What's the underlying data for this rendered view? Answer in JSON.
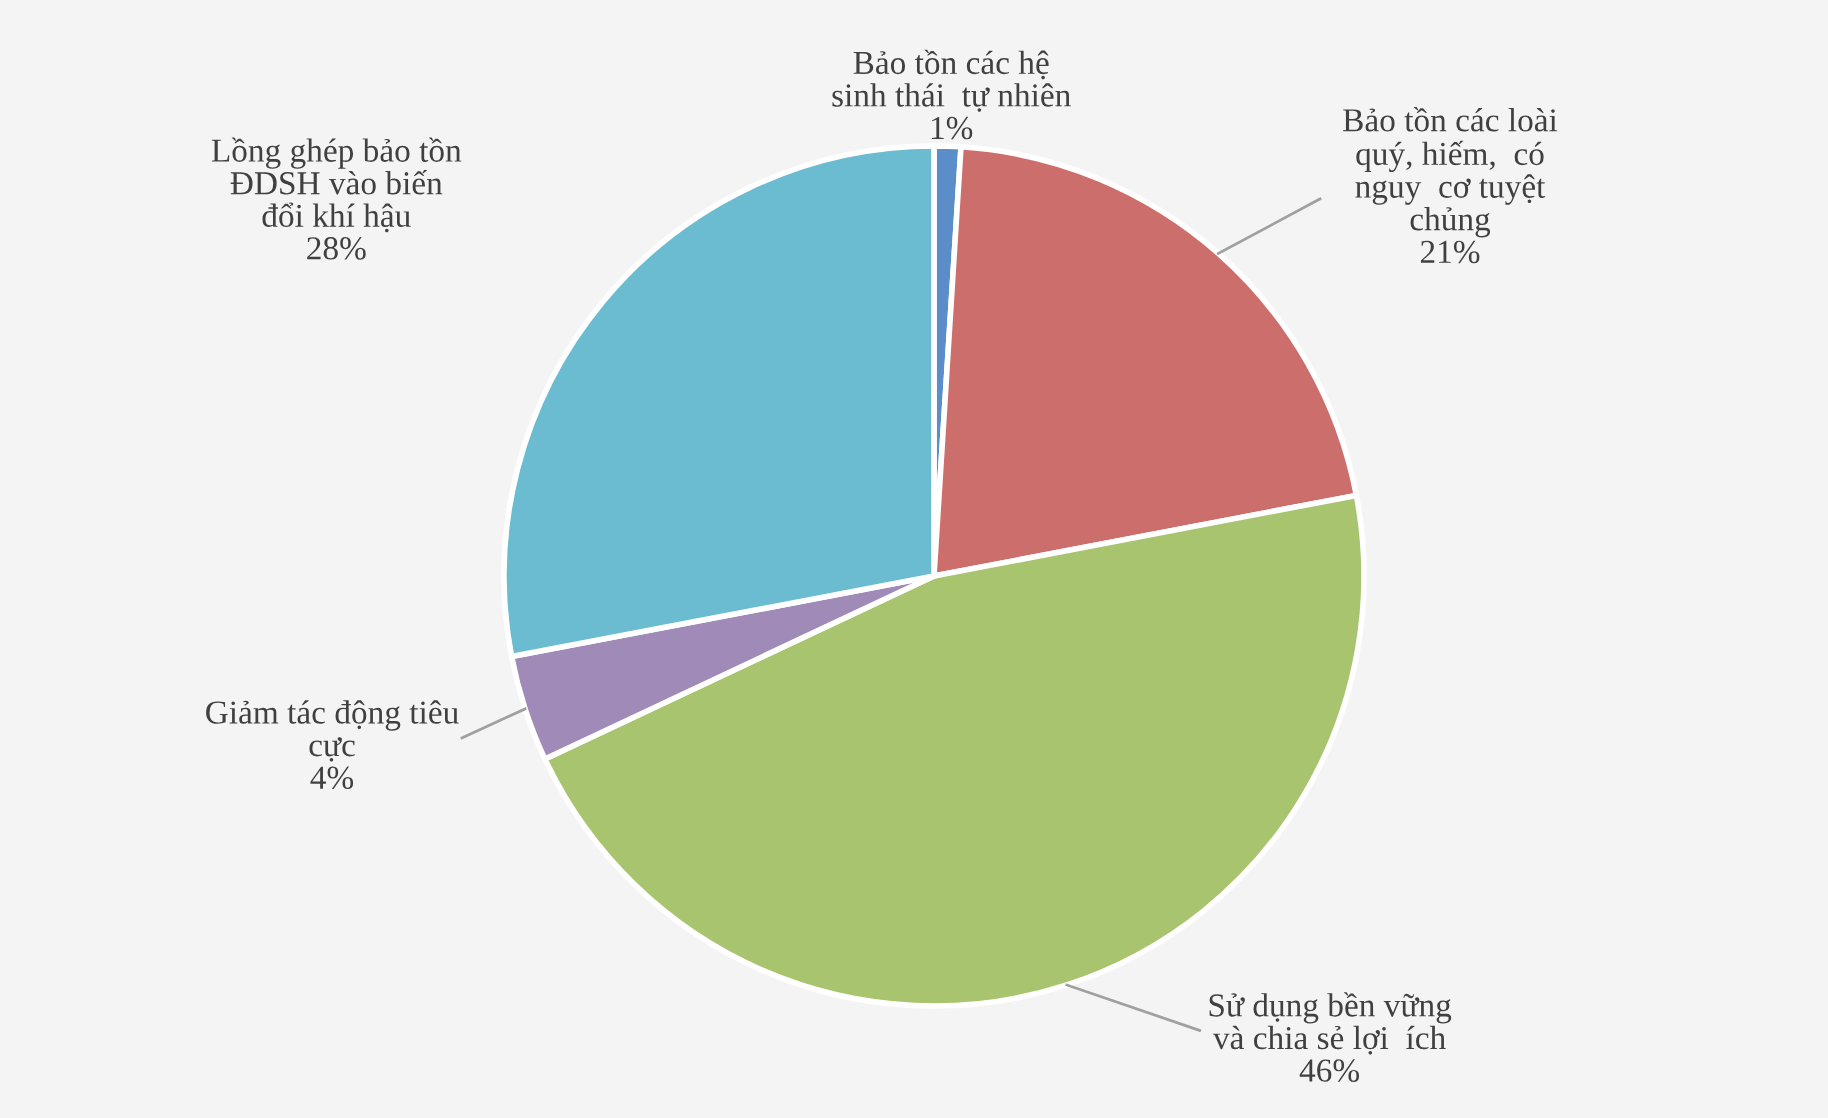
{
  "chart_data": {
    "type": "pie",
    "categories": [
      "Bảo tồn các hệ\nsinh thái  tự nhiên",
      "Bảo tồn các loài\nquý, hiếm,  có\nnguy  cơ tuyệt\nchủng",
      "Sử dụng bền vững\nvà chia sẻ lợi  ích",
      "Giảm tác động tiêu\ncực",
      "Lồng ghép bảo tồn\nĐDSH vào biến\nđổi khí hậu"
    ],
    "values": [
      1,
      21,
      46,
      4,
      28
    ],
    "value_labels": [
      "1%",
      "21%",
      "46%",
      "4%",
      "28%"
    ],
    "colors": [
      "#5b8dc9",
      "#cc6f6c",
      "#a9c46e",
      "#9f8ab8",
      "#6bbcd0"
    ]
  }
}
